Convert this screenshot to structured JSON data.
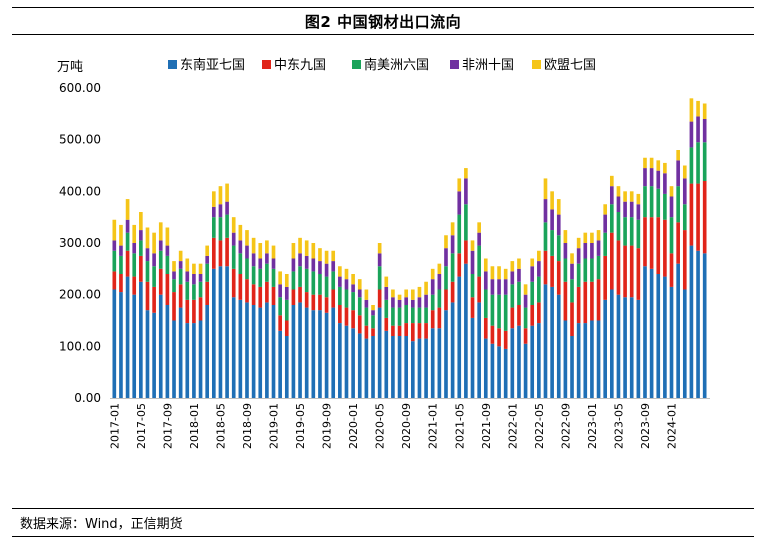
{
  "title": "图2   中国钢材出口流向",
  "source": "数据来源：Wind，正信期货",
  "chart_data": {
    "type": "bar",
    "stacked": true,
    "unit": "万吨",
    "ylim": [
      0,
      600
    ],
    "yticks": [
      "0.00",
      "100.00",
      "200.00",
      "300.00",
      "400.00",
      "500.00",
      "600.00"
    ],
    "tick_labels": [
      "2017-01",
      "2017-05",
      "2017-09",
      "2018-01",
      "2018-05",
      "2018-09",
      "2019-01",
      "2019-05",
      "2019-09",
      "2020-01",
      "2020-05",
      "2020-09",
      "2021-01",
      "2021-05",
      "2021-09",
      "2022-01",
      "2022-05",
      "2022-09",
      "2023-01",
      "2023-05",
      "2023-09",
      "2024-01"
    ],
    "categories": [
      "2017-01",
      "2017-02",
      "2017-03",
      "2017-04",
      "2017-05",
      "2017-06",
      "2017-07",
      "2017-08",
      "2017-09",
      "2017-10",
      "2017-11",
      "2017-12",
      "2018-01",
      "2018-02",
      "2018-03",
      "2018-04",
      "2018-05",
      "2018-06",
      "2018-07",
      "2018-08",
      "2018-09",
      "2018-10",
      "2018-11",
      "2018-12",
      "2019-01",
      "2019-02",
      "2019-03",
      "2019-04",
      "2019-05",
      "2019-06",
      "2019-07",
      "2019-08",
      "2019-09",
      "2019-10",
      "2019-11",
      "2019-12",
      "2020-01",
      "2020-02",
      "2020-03",
      "2020-04",
      "2020-05",
      "2020-06",
      "2020-07",
      "2020-08",
      "2020-09",
      "2020-10",
      "2020-11",
      "2020-12",
      "2021-01",
      "2021-02",
      "2021-03",
      "2021-04",
      "2021-05",
      "2021-06",
      "2021-07",
      "2021-08",
      "2021-09",
      "2021-10",
      "2021-11",
      "2021-12",
      "2022-01",
      "2022-02",
      "2022-03",
      "2022-04",
      "2022-05",
      "2022-06",
      "2022-07",
      "2022-08",
      "2022-09",
      "2022-10",
      "2022-11",
      "2022-12",
      "2023-01",
      "2023-02",
      "2023-03",
      "2023-04",
      "2023-05",
      "2023-06",
      "2023-07",
      "2023-08",
      "2023-09",
      "2023-10",
      "2023-11",
      "2023-12",
      "2024-01",
      "2024-02",
      "2024-03",
      "2024-04",
      "2024-05",
      "2024-06"
    ],
    "series": [
      {
        "name": "东南亚七国",
        "color": "#1f6fb5",
        "values": [
          210,
          205,
          235,
          200,
          225,
          170,
          165,
          200,
          180,
          150,
          175,
          145,
          145,
          150,
          180,
          250,
          255,
          255,
          195,
          190,
          185,
          180,
          175,
          185,
          180,
          130,
          120,
          180,
          185,
          175,
          170,
          170,
          165,
          175,
          145,
          140,
          135,
          125,
          115,
          120,
          175,
          130,
          120,
          120,
          120,
          110,
          115,
          115,
          135,
          135,
          170,
          185,
          235,
          260,
          155,
          185,
          115,
          105,
          100,
          95,
          135,
          140,
          105,
          140,
          145,
          220,
          215,
          200,
          150,
          120,
          145,
          145,
          150,
          150,
          190,
          210,
          200,
          195,
          195,
          190,
          255,
          250,
          240,
          235,
          215,
          260,
          210,
          295,
          285,
          280
        ]
      },
      {
        "name": "中东九国",
        "color": "#e0251a",
        "values": [
          35,
          35,
          50,
          35,
          50,
          55,
          50,
          50,
          60,
          55,
          45,
          45,
          45,
          45,
          45,
          60,
          50,
          55,
          55,
          50,
          45,
          40,
          40,
          40,
          35,
          30,
          30,
          30,
          30,
          30,
          30,
          30,
          30,
          35,
          35,
          35,
          35,
          35,
          25,
          15,
          35,
          25,
          20,
          20,
          25,
          35,
          30,
          30,
          35,
          40,
          40,
          40,
          45,
          45,
          40,
          50,
          40,
          35,
          35,
          35,
          40,
          40,
          30,
          40,
          40,
          65,
          60,
          65,
          75,
          65,
          70,
          80,
          75,
          80,
          85,
          110,
          105,
          100,
          100,
          100,
          95,
          100,
          110,
          110,
          65,
          80,
          115,
          120,
          130,
          140
        ]
      },
      {
        "name": "南美洲六国",
        "color": "#1aa35a",
        "values": [
          40,
          35,
          35,
          45,
          30,
          40,
          40,
          35,
          35,
          25,
          30,
          35,
          30,
          30,
          35,
          40,
          45,
          45,
          45,
          40,
          40,
          35,
          35,
          35,
          35,
          35,
          40,
          35,
          40,
          45,
          45,
          40,
          40,
          35,
          35,
          35,
          35,
          35,
          35,
          25,
          45,
          35,
          35,
          35,
          35,
          30,
          30,
          30,
          30,
          35,
          45,
          55,
          75,
          70,
          45,
          60,
          55,
          60,
          65,
          70,
          45,
          45,
          40,
          45,
          50,
          55,
          50,
          50,
          45,
          45,
          45,
          45,
          45,
          45,
          45,
          55,
          55,
          55,
          55,
          55,
          60,
          60,
          55,
          50,
          70,
          70,
          50,
          70,
          80,
          75
        ]
      },
      {
        "name": "非洲十国",
        "color": "#7030a0",
        "values": [
          20,
          20,
          25,
          20,
          20,
          25,
          25,
          20,
          20,
          15,
          15,
          20,
          20,
          15,
          15,
          20,
          25,
          25,
          25,
          25,
          25,
          25,
          20,
          20,
          20,
          25,
          25,
          25,
          25,
          25,
          25,
          25,
          25,
          20,
          20,
          20,
          15,
          15,
          15,
          10,
          25,
          25,
          20,
          15,
          15,
          15,
          20,
          25,
          30,
          30,
          35,
          35,
          45,
          50,
          45,
          25,
          35,
          30,
          30,
          30,
          25,
          25,
          25,
          30,
          30,
          45,
          40,
          40,
          30,
          30,
          30,
          30,
          30,
          30,
          35,
          35,
          30,
          30,
          30,
          30,
          35,
          35,
          35,
          40,
          40,
          50,
          50,
          50,
          50,
          45
        ]
      },
      {
        "name": "欧盟七国",
        "color": "#f5c518",
        "values": [
          40,
          40,
          40,
          35,
          35,
          40,
          40,
          35,
          35,
          20,
          20,
          25,
          20,
          20,
          20,
          30,
          35,
          35,
          30,
          30,
          30,
          30,
          30,
          25,
          25,
          25,
          25,
          30,
          30,
          30,
          30,
          25,
          25,
          20,
          20,
          20,
          20,
          20,
          20,
          10,
          20,
          20,
          15,
          10,
          15,
          20,
          20,
          25,
          20,
          20,
          25,
          25,
          25,
          20,
          20,
          20,
          25,
          25,
          25,
          20,
          20,
          20,
          20,
          15,
          20,
          40,
          35,
          30,
          25,
          20,
          20,
          20,
          20,
          20,
          20,
          20,
          20,
          20,
          20,
          20,
          20,
          20,
          20,
          20,
          20,
          20,
          25,
          45,
          30,
          30
        ]
      }
    ]
  }
}
